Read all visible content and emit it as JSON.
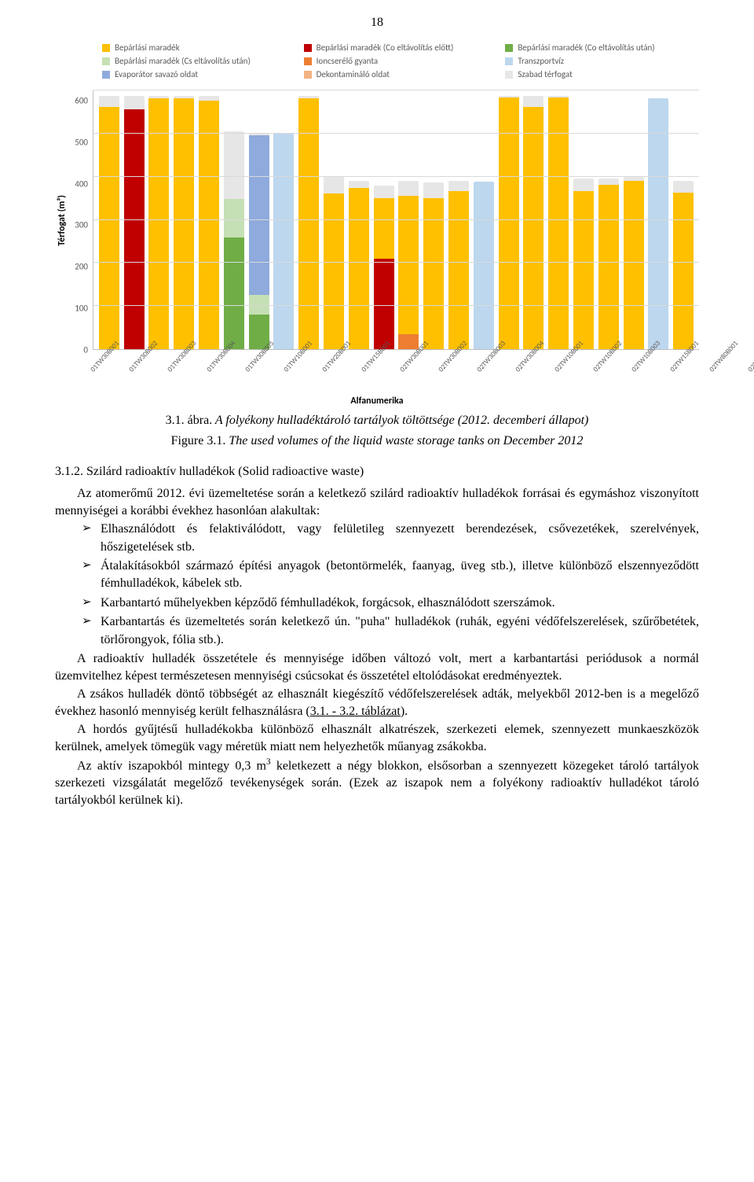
{
  "page_number": "18",
  "chart": {
    "type": "stacked-bar",
    "y_title": "Térfogat (m³)",
    "x_title": "Alfanumerika",
    "ymax": 600,
    "yticks": [
      600,
      500,
      400,
      300,
      200,
      100,
      0
    ],
    "grid_color": "#d9d9d9",
    "axis_color": "#bfbfbf",
    "text_color": "#595959",
    "colors": {
      "bep_maradek": "#ffc000",
      "bep_co_elott": "#c00000",
      "bep_co_utan": "#70ad47",
      "bep_cs_utan": "#c5e0b4",
      "ioncserelo": "#ed7d31",
      "transzportviz": "#bdd7ee",
      "evaporator": "#8faadc",
      "dekontaminalo": "#f4b183",
      "szabad": "#e7e6e6"
    },
    "legend": [
      {
        "key": "bep_maradek",
        "label": "Bepárlási maradék"
      },
      {
        "key": "bep_co_elott",
        "label": "Bepárlási maradék (Co eltávolítás előtt)"
      },
      {
        "key": "bep_co_utan",
        "label": "Bepárlási maradék (Co eltávolítás után)"
      },
      {
        "key": "bep_cs_utan",
        "label": "Bepárlási maradék (Cs eltávolítás után)"
      },
      {
        "key": "ioncserelo",
        "label": "Ioncserélő gyanta"
      },
      {
        "key": "transzportviz",
        "label": "Transzportvíz"
      },
      {
        "key": "evaporator",
        "label": "Evaporátor savazó oldat"
      },
      {
        "key": "dekontaminalo",
        "label": "Dekontamináló oldat"
      },
      {
        "key": "szabad",
        "label": "Szabad térfogat"
      }
    ],
    "categories": [
      "01TW30B001",
      "01TW30B002",
      "01TW30B003",
      "01TW30B004",
      "01TW30B005",
      "01TW10B001",
      "01TW20B001",
      "01TW15B001",
      "02TW30B001",
      "02TW30B002",
      "02TW30B003",
      "02TW30B004",
      "02TW10B001",
      "02TW10B002",
      "02TW10B003",
      "02TW15B001",
      "02TW80B001",
      "02TW80B002",
      "02TW80B003",
      "02TW80B004",
      "02TW80B005",
      "02TW80B006",
      "02TW85B001",
      "02TU80B001"
    ],
    "stacks": [
      [
        [
          "bep_maradek",
          560
        ],
        [
          "szabad",
          25
        ]
      ],
      [
        [
          "bep_co_elott",
          555
        ],
        [
          "szabad",
          30
        ]
      ],
      [
        [
          "bep_maradek",
          580
        ],
        [
          "szabad",
          5
        ]
      ],
      [
        [
          "bep_maradek",
          580
        ],
        [
          "szabad",
          5
        ]
      ],
      [
        [
          "bep_maradek",
          575
        ],
        [
          "szabad",
          10
        ]
      ],
      [
        [
          "bep_co_utan",
          258
        ],
        [
          "bep_cs_utan",
          90
        ],
        [
          "szabad",
          155
        ]
      ],
      [
        [
          "bep_co_utan",
          80
        ],
        [
          "bep_cs_utan",
          45
        ],
        [
          "evaporator",
          370
        ],
        [
          "szabad",
          5
        ]
      ],
      [
        [
          "transzportviz",
          500
        ]
      ],
      [
        [
          "bep_maradek",
          580
        ],
        [
          "szabad",
          5
        ]
      ],
      [
        [
          "bep_maradek",
          360
        ],
        [
          "szabad",
          40
        ]
      ],
      [
        [
          "bep_maradek",
          372
        ],
        [
          "szabad",
          18
        ]
      ],
      [
        [
          "bep_co_elott",
          210
        ],
        [
          "bep_maradek",
          140
        ],
        [
          "szabad",
          28
        ]
      ],
      [
        [
          "ioncserelo",
          35
        ],
        [
          "bep_maradek",
          320
        ],
        [
          "szabad",
          35
        ]
      ],
      [
        [
          "bep_maradek",
          350
        ],
        [
          "szabad",
          35
        ]
      ],
      [
        [
          "bep_maradek",
          365
        ],
        [
          "szabad",
          25
        ]
      ],
      [
        [
          "transzportviz",
          388
        ]
      ],
      [
        [
          "bep_maradek",
          582
        ],
        [
          "szabad",
          3
        ]
      ],
      [
        [
          "bep_maradek",
          560
        ],
        [
          "szabad",
          25
        ]
      ],
      [
        [
          "bep_maradek",
          582
        ],
        [
          "szabad",
          3
        ]
      ],
      [
        [
          "bep_maradek",
          365
        ],
        [
          "szabad",
          30
        ]
      ],
      [
        [
          "bep_maradek",
          380
        ],
        [
          "szabad",
          15
        ]
      ],
      [
        [
          "bep_maradek",
          390
        ],
        [
          "szabad",
          8
        ]
      ],
      [
        [
          "transzportviz",
          580
        ]
      ],
      [
        [
          "bep_maradek",
          362
        ],
        [
          "szabad",
          28
        ]
      ]
    ]
  },
  "caption_line1_prefix": "3.1. ábra.",
  "caption_line1_rest": " A folyékony hulladéktároló tartályok töltöttsége (2012. decemberi állapot)",
  "caption_line2_prefix": "Figure 3.1.",
  "caption_line2_rest": " The used volumes of the liquid waste storage tanks on December 2012",
  "section_heading": "3.1.2. Szilárd radioaktív hulladékok (Solid radioactive waste)",
  "para1": "Az atomerőmű 2012. évi üzemeltetése során a keletkező szilárd radioaktív hulladékok forrásai és egymáshoz viszonyított mennyiségei a korábbi évekhez hasonlóan alakultak:",
  "bullet_mark": "➢",
  "bullets": [
    "Elhasználódott és felaktiválódott, vagy felületileg szennyezett berendezések, csővezetékek, szerelvények, hőszigetelések stb.",
    "Átalakításokból származó építési anyagok (betontörmelék, faanyag, üveg stb.), illetve különböző elszennyeződött fémhulladékok, kábelek stb.",
    "Karbantartó műhelyekben képződő fémhulladékok, forgácsok, elhasználódott szerszámok.",
    "Karbantartás és üzemeltetés során keletkező ún. \"puha\" hulladékok (ruhák, egyéni védőfelszerelések, szűrőbetétek, törlőrongyok, fólia stb.)."
  ],
  "para2": "A radioaktív hulladék összetétele és mennyisége időben változó volt, mert a karbantartási periódusok a normál üzemvitelhez képest természetesen mennyiségi csúcsokat és összetétel eltolódásokat eredményeztek.",
  "para3_a": "A zsákos hulladék döntő többségét az elhasznált kiegészítő védőfelszerelések adták, melyekből 2012-ben is a megelőző évekhez hasonló mennyiség került felhasználásra (",
  "para3_link": "3.1. - 3.2. táblázat",
  "para3_b": ").",
  "para4": "A hordós gyűjtésű hulladékokba különböző elhasznált alkatrészek, szerkezeti elemek, szennyezett munkaeszközök kerülnek, amelyek tömegük vagy méretük miatt nem helyezhetők műanyag zsákokba.",
  "para5_a": "Az aktív iszapokból mintegy 0,3 m",
  "para5_sup": "3",
  "para5_b": " keletkezett a négy blokkon, elsősorban a szennyezett közegeket tároló tartályok szerkezeti vizsgálatát megelőző tevékenységek során. (Ezek az iszapok nem a folyékony radioaktív hulladékot tároló tartályokból kerülnek ki)."
}
